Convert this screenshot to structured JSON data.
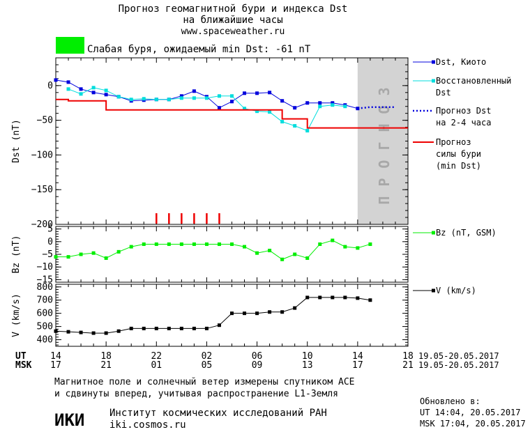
{
  "header": {
    "title_line1": "Прогноз геомагнитной бури и индекса Dst",
    "title_line2": "на ближайшие часы",
    "site": "www.spaceweather.ru",
    "storm_color": "#00ee00",
    "storm_text": "Слабая буря, ожидаемый min Dst: -61 nT"
  },
  "footer": {
    "line1": "Магнитное поле и солнечный ветер измерены спутником ACE",
    "line2": "и сдвинуты вперед, учитывая распространение L1-Земля",
    "institute_logo": "ИКИ",
    "institute_name": "Институт космических исследований РАН",
    "institute_site": "iki.cosmos.ru",
    "updated_label": "Обновлено в:",
    "updated_ut": "UT  14:04, 20.05.2017",
    "updated_msk": "MSK 17:04, 20.05.2017"
  },
  "chart_data": [
    {
      "type": "line",
      "ylabel": "Dst (nT)",
      "ylim": [
        -200,
        40
      ],
      "yticks": [
        0,
        -50,
        -100,
        -150,
        -200
      ],
      "xlim": [
        0,
        28
      ],
      "forecast_label": "ПРОГНОЗ",
      "forecast_region": [
        24,
        28
      ],
      "forecast_color": "#d3d3d3",
      "storm_markers_x": [
        8,
        9,
        10,
        11,
        12,
        13
      ],
      "series": [
        {
          "name": "Dst, Киото",
          "color": "#0000dd",
          "style": "line-markers",
          "x": [
            0,
            1,
            2,
            3,
            4,
            5,
            6,
            7,
            8,
            9,
            10,
            11,
            12,
            13,
            14,
            15,
            16,
            17,
            18,
            19,
            20,
            21,
            22,
            23,
            24
          ],
          "values": [
            8,
            5,
            -5,
            -10,
            -13,
            -16,
            -22,
            -21,
            -20,
            -20,
            -15,
            -8,
            -16,
            -32,
            -23,
            -11,
            -11,
            -10,
            -22,
            -32,
            -25,
            -25,
            -25,
            -28,
            -33
          ]
        },
        {
          "name": "Восстановленный Dst",
          "color": "#00dddd",
          "style": "line-markers",
          "x": [
            1,
            2,
            3,
            4,
            5,
            6,
            7,
            8,
            9,
            10,
            11,
            12,
            13,
            14,
            15,
            16,
            17,
            18,
            19,
            20,
            21,
            22,
            23
          ],
          "values": [
            -5,
            -12,
            -3,
            -7,
            -16,
            -20,
            -19,
            -20,
            -20,
            -18,
            -18,
            -18,
            -15,
            -15,
            -33,
            -37,
            -38,
            -52,
            -58,
            -65,
            -30,
            -28,
            -30
          ]
        },
        {
          "name": "Прогноз Dst на 2-4 часа",
          "color": "#0000dd",
          "style": "dotted",
          "x": [
            24,
            25,
            26,
            27
          ],
          "values": [
            -33,
            -31,
            -31,
            -31
          ]
        },
        {
          "name": "Прогноз силы бури (min Dst)",
          "color": "#ee0000",
          "style": "step",
          "x": [
            0,
            1,
            2,
            3,
            4,
            5,
            6,
            7,
            8,
            9,
            10,
            11,
            12,
            13,
            14,
            15,
            16,
            17,
            18,
            19,
            20,
            21,
            22,
            23,
            24,
            25,
            26,
            27,
            28
          ],
          "values": [
            -20,
            -22,
            -22,
            -22,
            -35,
            -35,
            -35,
            -35,
            -35,
            -35,
            -35,
            -35,
            -35,
            -35,
            -35,
            -35,
            -35,
            -35,
            -48,
            -48,
            -61,
            -61,
            -61,
            -61,
            -61,
            -61,
            -61,
            -61,
            -61
          ]
        }
      ]
    },
    {
      "type": "line",
      "ylabel": "Bz (nT)",
      "ylim": [
        -16,
        6
      ],
      "yticks": [
        5,
        0,
        -5,
        -10,
        -15
      ],
      "series": [
        {
          "name": "Bz (nT, GSM)",
          "color": "#00ee00",
          "style": "line-markers",
          "x": [
            0,
            1,
            2,
            3,
            4,
            5,
            6,
            7,
            8,
            9,
            10,
            11,
            12,
            13,
            14,
            15,
            16,
            17,
            18,
            19,
            20,
            21,
            22,
            23,
            24,
            25
          ],
          "values": [
            -6,
            -6,
            -5,
            -4.5,
            -6.5,
            -4,
            -2,
            -1,
            -1,
            -1,
            -1,
            -1,
            -1,
            -1,
            -1,
            -2,
            -4.5,
            -3.5,
            -7,
            -5,
            -6.5,
            -1,
            0.5,
            -2,
            -2.5,
            -1
          ]
        }
      ]
    },
    {
      "type": "line",
      "ylabel": "V (km/s)",
      "ylim": [
        350,
        820
      ],
      "yticks": [
        800,
        700,
        600,
        500,
        400
      ],
      "series": [
        {
          "name": "V (km/s)",
          "color": "#000000",
          "style": "line-markers",
          "x": [
            0,
            1,
            2,
            3,
            4,
            5,
            6,
            7,
            8,
            9,
            10,
            11,
            12,
            13,
            14,
            15,
            16,
            17,
            18,
            19,
            20,
            21,
            22,
            23,
            24,
            25
          ],
          "values": [
            465,
            460,
            455,
            450,
            450,
            465,
            485,
            485,
            485,
            485,
            485,
            485,
            485,
            510,
            600,
            600,
            600,
            610,
            610,
            640,
            720,
            720,
            720,
            720,
            715,
            700
          ]
        }
      ]
    }
  ],
  "xaxis": {
    "ut_label": "UT",
    "msk_label": "MSK",
    "tick_positions": [
      0,
      4,
      8,
      12,
      16,
      20,
      24,
      28
    ],
    "ut_ticks": [
      "14",
      "18",
      "22",
      "02",
      "06",
      "10",
      "14",
      "18"
    ],
    "msk_ticks": [
      "17",
      "21",
      "01",
      "05",
      "09",
      "13",
      "17",
      "21"
    ],
    "ut_range": "19.05-20.05.2017",
    "msk_range": "19.05-20.05.2017"
  }
}
